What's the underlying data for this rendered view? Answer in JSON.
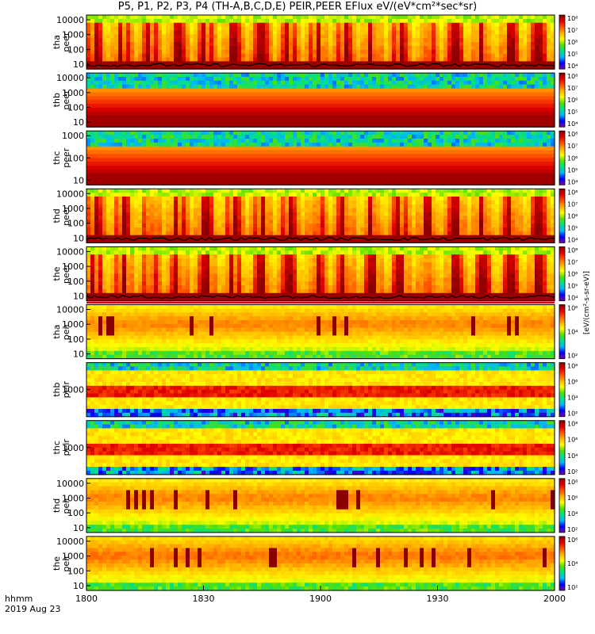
{
  "title": "P5, P1, P2, P3, P4 (TH-A,B,C,D,E) PEIR,PEER EFlux eV/(eV*cm²*sec*sr)",
  "colorbar_unit_label": "[eV/(cm²-s-sr-eV)]",
  "time_axis": {
    "unit_label": "hhmm",
    "date_label": "2019 Aug 23",
    "ticks": [
      "1800",
      "1830",
      "1900",
      "1930",
      "2000"
    ],
    "range": [
      "18:00",
      "20:00"
    ]
  },
  "colors": {
    "scale": [
      "#ffffff",
      "#7a0a9e",
      "#0000ff",
      "#00b4ff",
      "#00e08a",
      "#56e000",
      "#ffff00",
      "#ffb000",
      "#ff5000",
      "#e00000",
      "#8a0000"
    ],
    "fill_bar": "#e00000",
    "frame": "#000000"
  },
  "chart_data": [
    {
      "type": "heatmap",
      "name": "tha peer",
      "ylabel": [
        "tha",
        "peer"
      ],
      "yscale": "log",
      "yticks": [
        "10",
        "100",
        "1000",
        "10000"
      ],
      "colorbar_ticks": [
        "10⁴",
        "10⁵",
        "10⁶",
        "10⁷",
        "10⁸"
      ],
      "colorbar_range_log": [
        3,
        8
      ],
      "pattern": "bursty",
      "level": 0.7,
      "floor_line": true
    },
    {
      "type": "heatmap",
      "name": "thb peer",
      "ylabel": [
        "thb",
        "peer"
      ],
      "yscale": "log",
      "yticks": [
        "10",
        "100",
        "1000",
        "10000"
      ],
      "colorbar_ticks": [
        "10⁴",
        "10⁵",
        "10⁶",
        "10⁷",
        "10⁸"
      ],
      "colorbar_range_log": [
        3,
        8
      ],
      "pattern": "bands",
      "level": 0.95,
      "floor_line": false
    },
    {
      "type": "heatmap",
      "name": "thc peer",
      "ylabel": [
        "thc",
        "peer"
      ],
      "yscale": "log",
      "yticks": [
        "10",
        "100",
        "1000"
      ],
      "colorbar_ticks": [
        "10⁴",
        "10⁵",
        "10⁶",
        "10⁷",
        "10⁸"
      ],
      "colorbar_range_log": [
        3,
        8
      ],
      "pattern": "bands",
      "level": 0.95,
      "floor_line": false
    },
    {
      "type": "heatmap",
      "name": "thd peer",
      "ylabel": [
        "thd",
        "peer"
      ],
      "yscale": "log",
      "yticks": [
        "10",
        "100",
        "1000",
        "10000"
      ],
      "colorbar_ticks": [
        "10⁴",
        "10⁵",
        "10⁶",
        "10⁷",
        "10⁸"
      ],
      "colorbar_range_log": [
        3,
        8
      ],
      "pattern": "bursty",
      "level": 0.75,
      "floor_line": true
    },
    {
      "type": "heatmap",
      "name": "the peer",
      "ylabel": [
        "the",
        "peer"
      ],
      "yscale": "log",
      "yticks": [
        "10",
        "100",
        "1000",
        "10000"
      ],
      "colorbar_ticks": [
        "10⁴",
        "10⁵",
        "10⁶",
        "10⁷",
        "10⁸"
      ],
      "colorbar_range_log": [
        3,
        8
      ],
      "pattern": "bursty",
      "level": 0.85,
      "floor_line": true
    },
    {
      "type": "heatmap",
      "name": "tha peir",
      "ylabel": [
        "tha",
        "peir"
      ],
      "yscale": "log",
      "yticks": [
        "10",
        "100",
        "1000",
        "10000"
      ],
      "colorbar_ticks": [
        "10²",
        "10⁴",
        "10⁶"
      ],
      "colorbar_range_log": [
        1,
        7
      ],
      "pattern": "ion",
      "level": 0.6,
      "floor_line": false
    },
    {
      "type": "heatmap",
      "name": "thb peir",
      "ylabel": [
        "thb",
        "peir"
      ],
      "yscale": "log",
      "yticks": [
        "1000"
      ],
      "colorbar_ticks": [
        "10²",
        "10⁴",
        "10⁶",
        "10⁸"
      ],
      "colorbar_range_log": [
        1,
        8.5
      ],
      "pattern": "ionband",
      "level": 0.6,
      "floor_line": false
    },
    {
      "type": "heatmap",
      "name": "thc peir",
      "ylabel": [
        "thc",
        "peir"
      ],
      "yscale": "log",
      "yticks": [
        "1000"
      ],
      "colorbar_ticks": [
        "10²",
        "10⁴",
        "10⁶",
        "10⁸"
      ],
      "colorbar_range_log": [
        1,
        8.5
      ],
      "pattern": "ionband",
      "level": 0.6,
      "floor_line": false
    },
    {
      "type": "heatmap",
      "name": "thd peir",
      "ylabel": [
        "thd",
        "peir"
      ],
      "yscale": "log",
      "yticks": [
        "10",
        "100",
        "1000",
        "10000"
      ],
      "colorbar_ticks": [
        "10²",
        "10⁴",
        "10⁶",
        "10⁸"
      ],
      "colorbar_range_log": [
        1,
        8.5
      ],
      "pattern": "ion",
      "level": 0.6,
      "floor_line": false
    },
    {
      "type": "heatmap",
      "name": "the peir",
      "ylabel": [
        "the",
        "peir"
      ],
      "yscale": "log",
      "yticks": [
        "10",
        "100",
        "1000",
        "10000"
      ],
      "colorbar_ticks": [
        "10²",
        "10⁴",
        "10⁶"
      ],
      "colorbar_range_log": [
        1,
        7
      ],
      "pattern": "ion",
      "level": 0.62,
      "floor_line": false
    }
  ]
}
